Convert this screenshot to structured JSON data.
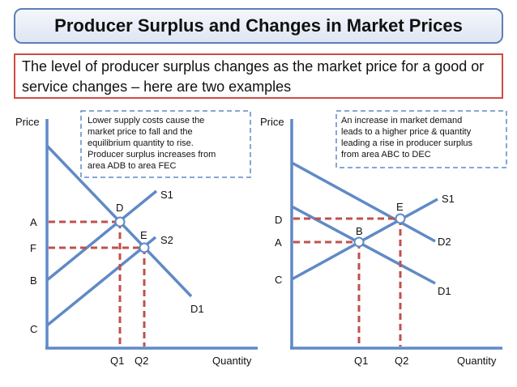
{
  "title": "Producer Surplus and Changes in Market Prices",
  "intro": "The level of producer surplus changes as the market price for a good or service changes – here are two examples",
  "colors": {
    "curve": "#5f8ac6",
    "dashed": "#c0504d",
    "note_border": "#5f8ac6",
    "title_border": "#5b7fb7",
    "intro_border": "#d04b45"
  },
  "left": {
    "y_axis_label": "Price",
    "x_axis_label": "Quantity",
    "note_lines": [
      "Lower supply costs cause the",
      "market price to fall and the",
      "equilibrium quantity to rise.",
      "Producer surplus increases from",
      "area ADB to area FEC"
    ],
    "curves": {
      "s1": "S1",
      "s2": "S2",
      "d1": "D1"
    },
    "points": {
      "d": "D",
      "e": "E"
    },
    "price_labels": {
      "a": "A",
      "f": "F",
      "b": "B",
      "c": "C"
    },
    "quantity_labels": {
      "q1": "Q1",
      "q2": "Q2"
    }
  },
  "right": {
    "y_axis_label": "Price",
    "x_axis_label": "Quantity",
    "note_lines": [
      "An increase in market demand",
      "leads to a higher price & quantity",
      "leading a rise in producer surplus",
      "from area ABC to DEC"
    ],
    "curves": {
      "s1": "S1",
      "d1": "D1",
      "d2": "D2"
    },
    "points": {
      "e": "E",
      "b": "B"
    },
    "price_labels": {
      "d": "D",
      "a": "A",
      "c": "C"
    },
    "quantity_labels": {
      "q1": "Q1",
      "q2": "Q2"
    }
  }
}
